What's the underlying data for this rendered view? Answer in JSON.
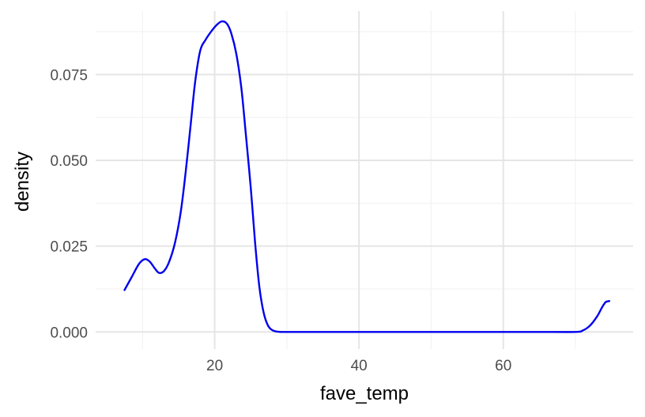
{
  "chart_data": {
    "type": "line",
    "title": "",
    "xlabel": "fave_temp",
    "ylabel": "density",
    "xlim": [
      3.5,
      78
    ],
    "ylim": [
      -0.005,
      0.0935
    ],
    "x_ticks": [
      20,
      40,
      60
    ],
    "x_tick_labels": [
      "20",
      "40",
      "60"
    ],
    "x_minor_ticks": [
      10,
      30,
      50,
      70
    ],
    "y_ticks": [
      0,
      0.025,
      0.05,
      0.075
    ],
    "y_tick_labels": [
      "0.000",
      "0.025",
      "0.050",
      "0.075"
    ],
    "y_minor_ticks": [
      0.0125,
      0.0375,
      0.0625,
      0.0875
    ],
    "grid": true,
    "legend": "none",
    "line_color": "#0000ee",
    "series": [
      {
        "x": [
          7.5,
          8.5,
          9.5,
          10.3,
          11,
          11.7,
          12.3,
          13,
          13.7,
          14.5,
          15.3,
          16,
          16.7,
          17.3,
          18,
          18.7,
          19.5,
          20.3,
          21,
          21.7,
          22.3,
          23,
          23.7,
          24.3,
          25,
          25.6,
          26.2,
          26.8,
          27.4,
          28,
          28.6,
          29.2,
          30,
          35,
          40,
          45,
          50,
          55,
          60,
          65,
          70,
          71,
          72,
          73,
          73.7,
          74.2,
          74.7
        ],
        "y": [
          0.0122,
          0.016,
          0.0198,
          0.0212,
          0.0205,
          0.0185,
          0.0172,
          0.0178,
          0.0205,
          0.026,
          0.035,
          0.047,
          0.061,
          0.073,
          0.082,
          0.085,
          0.0875,
          0.0895,
          0.0905,
          0.0898,
          0.087,
          0.081,
          0.071,
          0.058,
          0.042,
          0.026,
          0.013,
          0.0055,
          0.0018,
          0.0005,
          0.0001,
          0.0,
          0.0,
          0.0,
          0.0,
          0.0,
          0.0,
          0.0,
          0.0,
          0.0,
          0.0,
          0.0004,
          0.0018,
          0.0045,
          0.0072,
          0.0087,
          0.009
        ]
      }
    ]
  }
}
